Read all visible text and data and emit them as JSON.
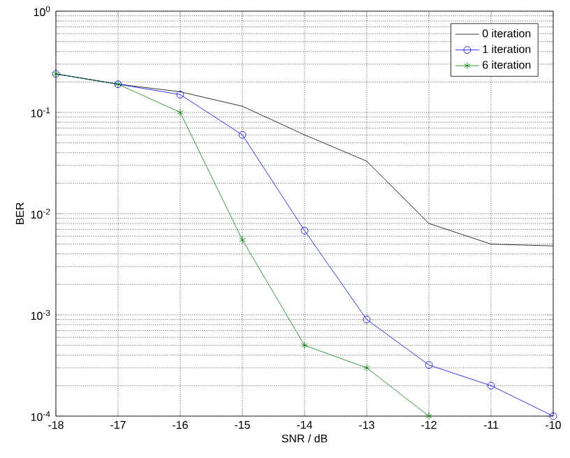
{
  "chart_data": {
    "type": "line",
    "xlabel": "SNR / dB",
    "ylabel": "BER",
    "log": "y",
    "grid": true,
    "legend": "top right",
    "x": [
      -18,
      -17,
      -16,
      -15,
      -14,
      -13,
      -12,
      -11,
      -10
    ],
    "xlim": [
      -18,
      -10
    ],
    "xticks": [
      -18,
      -17,
      -16,
      -15,
      -14,
      -13,
      -12,
      -11,
      -10
    ],
    "ylim": [
      0.0001,
      1
    ],
    "yticks": [
      {
        "value": 0.0001,
        "label": "10$^{-4}$"
      },
      {
        "value": 0.001,
        "label": "10$^{-3}$"
      },
      {
        "value": 0.01,
        "label": "10$^{-2}$"
      },
      {
        "value": 0.1,
        "label": "10$^{-1}$"
      },
      {
        "value": 1,
        "label": "10$^{0}$"
      }
    ],
    "series": [
      {
        "name": "0 iteration",
        "color": "#000000",
        "marker": "none",
        "values": [
          0.24,
          0.19,
          0.16,
          0.115,
          0.06,
          0.033,
          0.008,
          0.005,
          0.0048
        ]
      },
      {
        "name": "1 iteration",
        "color": "#0000ff",
        "marker": "circle",
        "values": [
          0.24,
          0.19,
          0.15,
          0.06,
          0.0068,
          0.0009,
          0.00032,
          0.0002,
          0.0001
        ]
      },
      {
        "name": "6 iteration",
        "color": "#008000",
        "marker": "cross",
        "values": [
          0.24,
          0.19,
          0.1,
          0.0055,
          0.0005,
          0.0003,
          0.0001,
          null,
          null
        ]
      }
    ]
  }
}
